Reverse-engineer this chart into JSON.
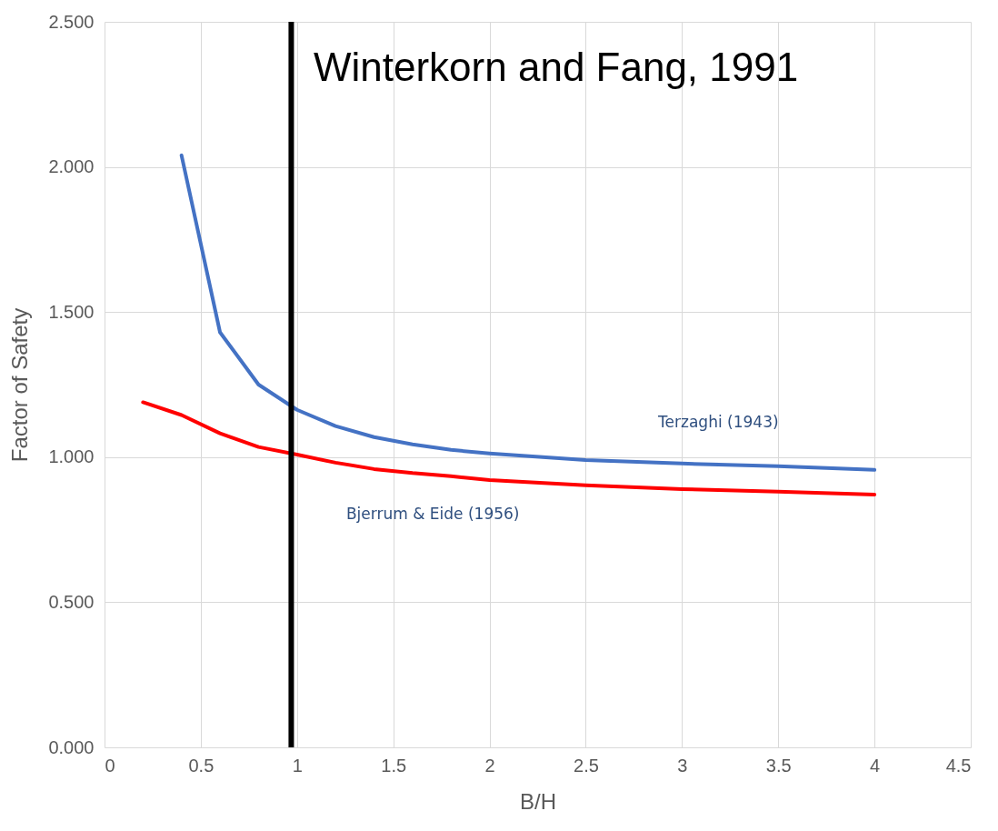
{
  "chart_data": {
    "type": "line",
    "xlabel": "B/H",
    "ylabel": "Factor of Safety",
    "annotations": [
      "Winterkorn and Fang, 1991"
    ],
    "series": [
      {
        "name": "Terzaghi (1943)",
        "color": "#4472c4",
        "x": [
          0.4,
          0.6,
          0.8,
          1.0,
          1.2,
          1.4,
          1.6,
          1.8,
          2.0,
          2.5,
          3.0,
          3.5,
          4.0
        ],
        "values": [
          2.04,
          1.43,
          1.25,
          1.163,
          1.107,
          1.069,
          1.044,
          1.025,
          1.013,
          0.99,
          0.978,
          0.969,
          0.956
        ]
      },
      {
        "name": "Bjerrum & Eide (1956)",
        "color": "#ff0000",
        "x": [
          0.2,
          0.4,
          0.6,
          0.8,
          1.0,
          1.2,
          1.4,
          1.6,
          1.8,
          2.0,
          2.5,
          3.0,
          3.5,
          4.0
        ],
        "values": [
          1.189,
          1.145,
          1.082,
          1.035,
          1.009,
          0.981,
          0.959,
          0.945,
          0.934,
          0.921,
          0.903,
          0.89,
          0.881,
          0.871
        ]
      }
    ],
    "ref_lines": [
      {
        "axis": "x",
        "value": 0.97,
        "color": "#000000"
      }
    ],
    "xlim": [
      0,
      4.5
    ],
    "xticks": [
      0,
      0.5,
      1,
      1.5,
      2,
      2.5,
      3,
      3.5,
      4,
      4.5
    ],
    "ylim": [
      0,
      2.5
    ],
    "yticks": [
      {
        "value": 0,
        "label": "0.000"
      },
      {
        "value": 0.5,
        "label": "0.500"
      },
      {
        "value": 1,
        "label": "1.000"
      },
      {
        "value": 1.5,
        "label": "1.500"
      },
      {
        "value": 2,
        "label": "2.000"
      },
      {
        "value": 2.5,
        "label": "2.500"
      }
    ],
    "grid": true,
    "legend": false,
    "marker": "none",
    "line_style": "solid"
  }
}
